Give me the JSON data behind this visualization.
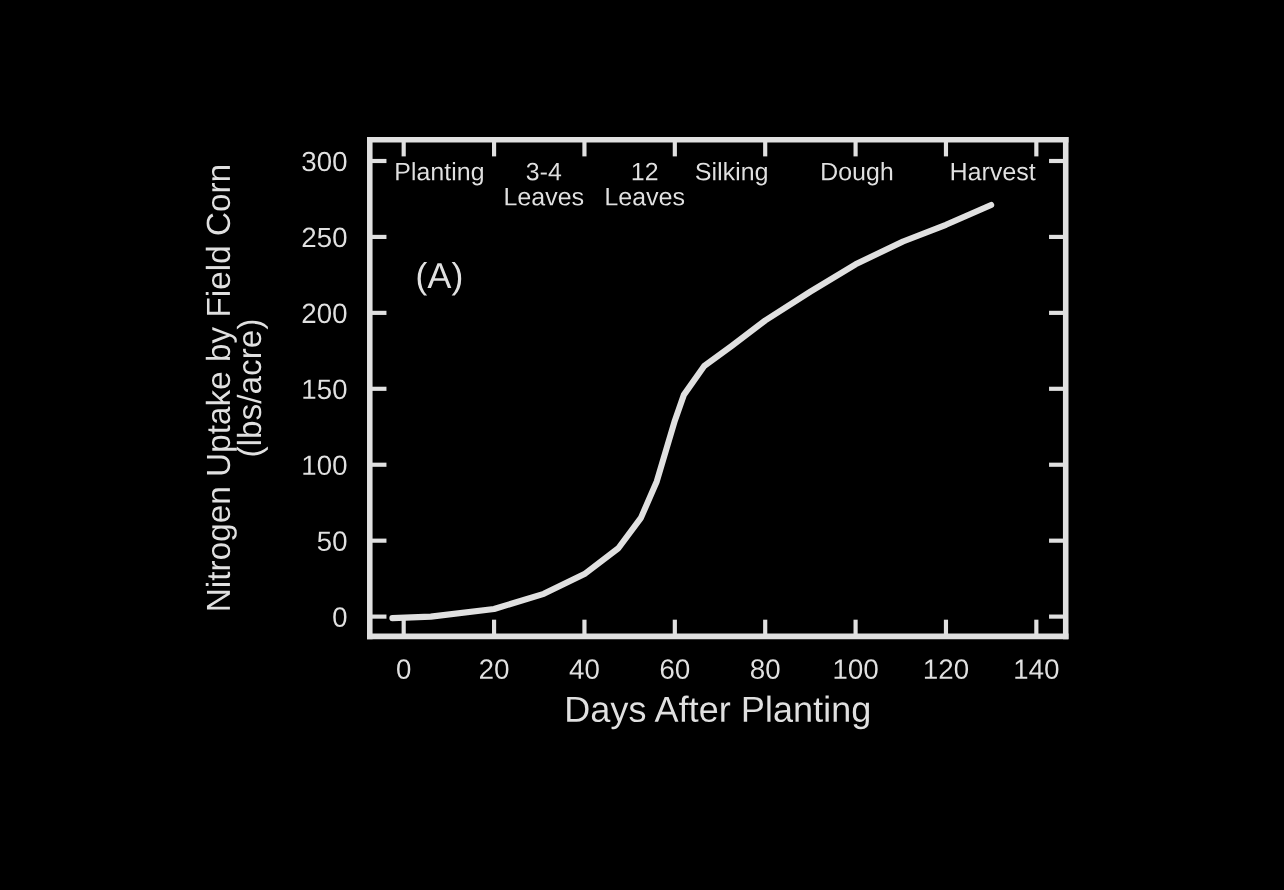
{
  "chart_data": {
    "type": "line",
    "xlabel": "Days After Planting",
    "ylabel": "Nitrogen Uptake by Field Corn\n(lbs/acre)",
    "x": [
      -2.5,
      6,
      20,
      31,
      40,
      47.5,
      52.5,
      56,
      60,
      62,
      66.5,
      72.5,
      80,
      90,
      100,
      110.5,
      120,
      130
    ],
    "series": [
      {
        "color": "#e0e0e0",
        "values": [
          -1,
          0,
          5,
          15,
          28,
          45,
          65,
          89,
          129,
          146,
          165,
          178,
          195,
          214,
          232,
          247,
          258,
          271
        ]
      }
    ],
    "xlim": [
      -7.5,
      146.5
    ],
    "ylim": [
      -13,
      314
    ],
    "xticks": [
      0,
      20,
      40,
      60,
      80,
      100,
      120,
      140
    ],
    "yticks": [
      0,
      50,
      100,
      150,
      200,
      250,
      300
    ],
    "grid": false,
    "legend": false,
    "marker": "none",
    "line_style": "solid",
    "annotations": [
      "Planting",
      "3-4\nLeaves",
      "12\nLeaves",
      "Silking",
      "Dough",
      "Harvest",
      "(A)"
    ]
  }
}
